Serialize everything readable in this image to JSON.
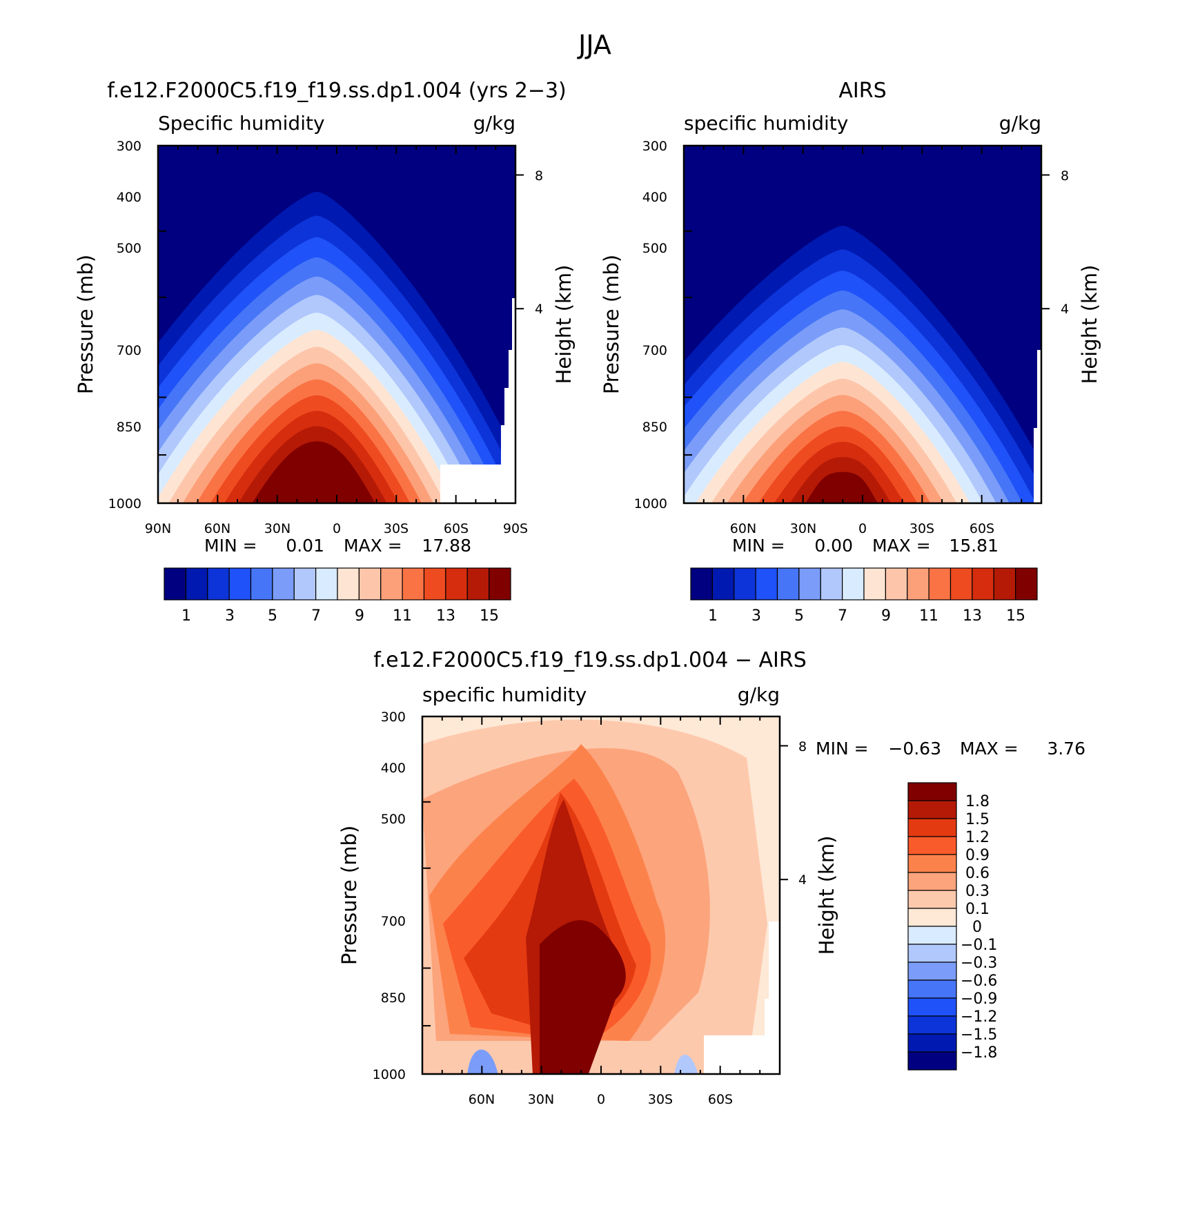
{
  "figure": {
    "title": "JJA"
  },
  "chart_data": [
    {
      "type": "heatmap",
      "title": "f.e12.F2000C5.f19_f19.ss.dp1.004 (yrs 2-3)",
      "left_label": "Specific humidity",
      "right_label": "g/kg",
      "ylabel": "Pressure (mb)",
      "y2label": "Height (km)",
      "x_ticks": [
        "90N",
        "60N",
        "30N",
        "0",
        "30S",
        "60S",
        "90S"
      ],
      "y_ticks": [
        "300",
        "400",
        "500",
        "700",
        "850",
        "1000"
      ],
      "y2_ticks": [
        "8",
        "4"
      ],
      "stats": {
        "min_label": "MIN =",
        "min": "0.01",
        "max_label": "MAX =",
        "max": "17.88"
      },
      "colorbar_labels": [
        "1",
        "3",
        "5",
        "7",
        "9",
        "11",
        "13",
        "15"
      ],
      "ylim": [
        1000,
        300
      ],
      "xlim": [
        90,
        -90
      ],
      "peak_value": 17.88,
      "peak_lat": 10
    },
    {
      "type": "heatmap",
      "title": "AIRS",
      "left_label": "specific humidity",
      "right_label": "g/kg",
      "ylabel": "Pressure (mb)",
      "y2label": "Height (km)",
      "x_ticks": [
        "60N",
        "30N",
        "0",
        "30S",
        "60S"
      ],
      "y_ticks": [
        "300",
        "400",
        "500",
        "700",
        "850",
        "1000"
      ],
      "y2_ticks": [
        "8",
        "4"
      ],
      "stats": {
        "min_label": "MIN =",
        "min": "0.00",
        "max_label": "MAX =",
        "max": "15.81"
      },
      "colorbar_labels": [
        "1",
        "3",
        "5",
        "7",
        "9",
        "11",
        "13",
        "15"
      ],
      "ylim": [
        1000,
        300
      ],
      "xlim": [
        90,
        -90
      ],
      "peak_value": 15.81,
      "peak_lat": 10
    },
    {
      "type": "heatmap",
      "title": "f.e12.F2000C5.f19_f19.ss.dp1.004 - AIRS",
      "left_label": "specific humidity",
      "right_label": "g/kg",
      "ylabel": "Pressure (mb)",
      "y2label": "Height (km)",
      "x_ticks": [
        "60N",
        "30N",
        "0",
        "30S",
        "60S"
      ],
      "y_ticks": [
        "300",
        "400",
        "500",
        "700",
        "850",
        "1000"
      ],
      "y2_ticks": [
        "8",
        "4"
      ],
      "stats": {
        "min_label": "MIN =",
        "min": "-0.63",
        "max_label": "MAX =",
        "max": "3.76"
      },
      "colorbar_labels": [
        "1.8",
        "1.5",
        "1.2",
        "0.9",
        "0.6",
        "0.3",
        "0.1",
        "0",
        "-0.1",
        "-0.3",
        "-0.6",
        "-0.9",
        "-1.2",
        "-1.5",
        "-1.8"
      ],
      "ylim": [
        1000,
        300
      ],
      "xlim": [
        90,
        -90
      ]
    }
  ],
  "colors": {
    "scale": [
      "#000080",
      "#0019b0",
      "#0d34d9",
      "#1f52f8",
      "#4675f7",
      "#7b9df9",
      "#b1c8fc",
      "#d9ebfe",
      "#fee5d3",
      "#fdc6ab",
      "#fca079",
      "#fa7345",
      "#ee4b20",
      "#d62d0e",
      "#b51a06",
      "#800000"
    ],
    "diff_scale": [
      "#800000",
      "#b51a06",
      "#e43a12",
      "#fa5b2a",
      "#fc824c",
      "#fca47c",
      "#fdc9ac",
      "#fee8d6",
      "#d9ebfe",
      "#b1c8fc",
      "#7b9df9",
      "#4675f7",
      "#1f52f8",
      "#0d34d9",
      "#0019b0",
      "#000080"
    ]
  }
}
